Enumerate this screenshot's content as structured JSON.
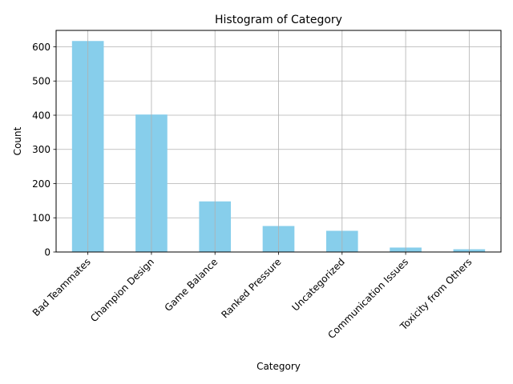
{
  "chart_data": {
    "type": "bar",
    "title": "Histogram of Category",
    "xlabel": "Category",
    "ylabel": "Count",
    "categories": [
      "Bad Teammates",
      "Champion Design",
      "Game Balance",
      "Ranked Pressure",
      "Uncategorized",
      "Communication Issues",
      "Toxicity from Others"
    ],
    "values": [
      617,
      402,
      148,
      76,
      62,
      13,
      8
    ],
    "ylim": [
      0,
      648
    ],
    "yticks": [
      0,
      100,
      200,
      300,
      400,
      500,
      600
    ],
    "grid": true,
    "bar_color": "#87ceeb",
    "grid_color": "#b0b0b0"
  }
}
